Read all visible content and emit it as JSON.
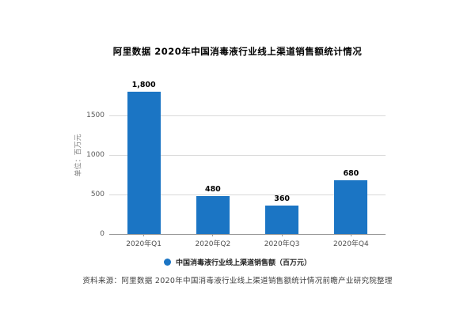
{
  "chart_data": {
    "type": "bar",
    "title": "阿里数据 2020年中国消毒液行业线上渠道销售额统计情况",
    "ylabel": "单位：百万元",
    "xlabel": "",
    "categories": [
      "2020年Q1",
      "2020年Q2",
      "2020年Q3",
      "2020年Q4"
    ],
    "values": [
      1800,
      480,
      360,
      680
    ],
    "value_labels": [
      "1,800",
      "480",
      "360",
      "680"
    ],
    "yticks": [
      0,
      500,
      1000,
      1500
    ],
    "ylim": [
      0,
      2000
    ],
    "grid": true,
    "legend": {
      "label": "中国消毒液行业线上渠道销售额（百万元）",
      "position": "bottom"
    }
  },
  "source_note": "资料来源：阿里数据 2020年中国消毒液行业线上渠道销售额统计情况前瞻产业研究院整理",
  "colors": {
    "bar": "#1b75c4",
    "grid": "#d9d9d9",
    "axis": "#999999",
    "tick_label": "#595959",
    "y_axis_label": "#808080",
    "value_label": "#000000",
    "background": "#ffffff"
  }
}
